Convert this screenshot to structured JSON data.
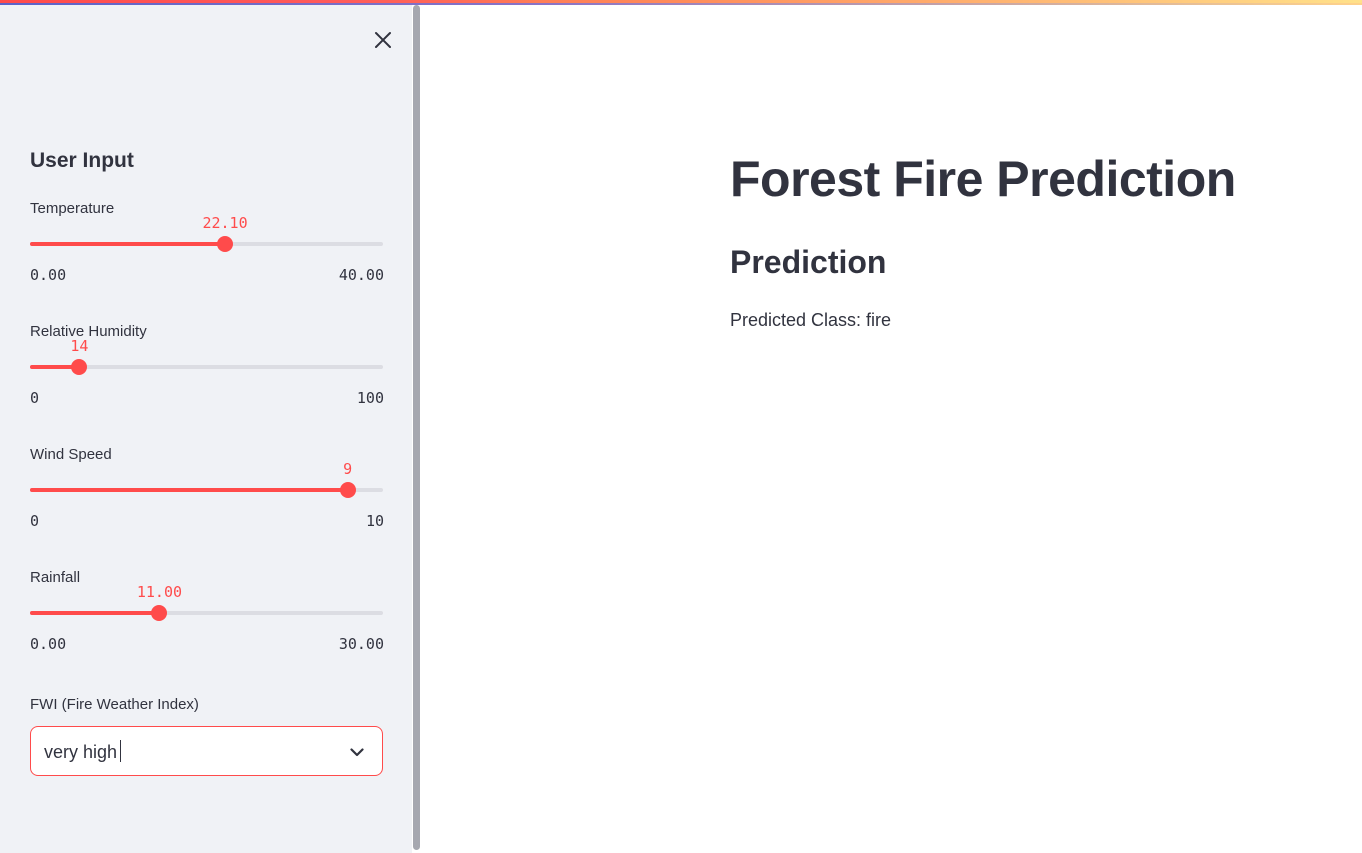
{
  "colors": {
    "accent": "#ff4b4b",
    "sidebar_bg": "#f0f2f6",
    "text": "#31333f",
    "track": "#dcdde3"
  },
  "sidebar": {
    "close_icon": "close-icon",
    "heading": "User Input",
    "sliders": [
      {
        "label": "Temperature",
        "value": "22.10",
        "min": "0.00",
        "max": "40.00",
        "fraction": 0.5525
      },
      {
        "label": "Relative Humidity",
        "value": "14",
        "min": "0",
        "max": "100",
        "fraction": 0.14
      },
      {
        "label": "Wind Speed",
        "value": "9",
        "min": "0",
        "max": "10",
        "fraction": 0.9
      },
      {
        "label": "Rainfall",
        "value": "11.00",
        "min": "0.00",
        "max": "30.00",
        "fraction": 0.3667
      }
    ],
    "select": {
      "label": "FWI (Fire Weather Index)",
      "value": "very high",
      "icon": "chevron-down-icon"
    }
  },
  "main": {
    "title": "Forest Fire Prediction",
    "section_title": "Prediction",
    "result": "Predicted Class: fire"
  }
}
